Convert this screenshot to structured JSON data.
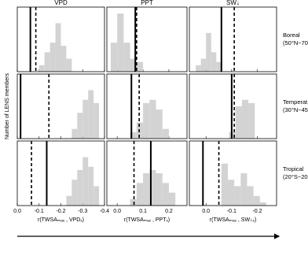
{
  "chart_data": {
    "type": "histogram-grid",
    "ylabel": "Number of LENS members",
    "ylim": [
      0,
      20
    ],
    "bar_color": "#d3d3d3",
    "columns": [
      {
        "title": "VPD",
        "xlabel": "r(TWSAₘₐₓ , VPDₓ)",
        "xlim": [
          0,
          -0.4
        ],
        "xticks": [
          {
            "value": 0,
            "label": "0.0"
          },
          -0.1,
          -0.2,
          -0.3,
          -0.4
        ]
      },
      {
        "title": "PPT",
        "xlabel": "r(TWSAₘₐₓ , PPTₓ)",
        "xlim": [
          -0.04,
          0.27
        ],
        "xticks": [
          {
            "value": 0,
            "label": "0.0"
          },
          0.1,
          0.2
        ]
      },
      {
        "title": "SW↓",
        "xlabel": "r(TWSAₘₐₓ , SW↓ₓ)",
        "xlim": [
          0.065,
          -0.275
        ],
        "xticks": [
          {
            "value": 0,
            "label": "0.0"
          },
          -0.1,
          -0.2
        ]
      }
    ],
    "rows": [
      {
        "label": [
          "Boreal",
          "(50°N−70"
        ],
        "panels": [
          {
            "bins": [
              -0.1,
              -0.125,
              -0.15,
              -0.175,
              -0.2,
              -0.225,
              -0.25
            ],
            "counts": [
              2,
              6,
              9,
              15,
              8,
              4
            ],
            "solid": -0.06,
            "dashed": -0.085
          },
          {
            "bins": [
              -0.025,
              0,
              0.025,
              0.05,
              0.075,
              0.1
            ],
            "counts": [
              9,
              18,
              9,
              4,
              3
            ],
            "solid": 0.07,
            "dashed": 0.075
          },
          {
            "bins": [
              0.04,
              0.02,
              0,
              -0.02,
              -0.04,
              -0.06
            ],
            "counts": [
              2,
              4,
              12,
              6,
              3
            ],
            "solid": -0.06,
            "dashed": -0.11
          }
        ]
      },
      {
        "label": [
          "Temperat",
          "(30°N−45"
        ],
        "panels": [
          {
            "bins": [
              -0.25,
              -0.275,
              -0.3,
              -0.325,
              -0.35,
              -0.375
            ],
            "counts": [
              3,
              8,
              12,
              15,
              11
            ],
            "solid": -0.015,
            "dashed": -0.145
          },
          {
            "bins": [
              0.05,
              0.075,
              0.1,
              0.125,
              0.15,
              0.175,
              0.2
            ],
            "counts": [
              2,
              5,
              11,
              12,
              9,
              3
            ],
            "solid": 0.055,
            "dashed": 0.085
          },
          {
            "bins": [
              -0.09,
              -0.115,
              -0.14,
              -0.165,
              -0.19
            ],
            "counts": [
              2,
              10,
              12,
              11
            ],
            "solid": -0.1,
            "dashed": -0.11
          }
        ]
      },
      {
        "label": [
          "Tropical",
          "(20°S−20"
        ],
        "panels": [
          {
            "bins": [
              -0.225,
              -0.25,
              -0.275,
              -0.3,
              -0.325,
              -0.35,
              -0.375
            ],
            "counts": [
              3,
              8,
              11,
              15,
              12,
              6
            ],
            "solid": -0.135,
            "dashed": -0.065
          },
          {
            "bins": [
              0.05,
              0.075,
              0.1,
              0.125,
              0.15,
              0.175,
              0.2,
              0.225
            ],
            "counts": [
              2,
              7,
              10,
              11,
              10,
              7,
              4
            ],
            "solid": 0.13,
            "dashed": 0.065
          },
          {
            "bins": [
              -0.06,
              -0.085,
              -0.11,
              -0.135,
              -0.16,
              -0.185,
              -0.21,
              -0.235
            ],
            "counts": [
              13,
              8,
              6,
              10,
              6,
              3,
              1
            ],
            "solid": 0.012,
            "dashed": -0.05
          }
        ]
      }
    ]
  }
}
